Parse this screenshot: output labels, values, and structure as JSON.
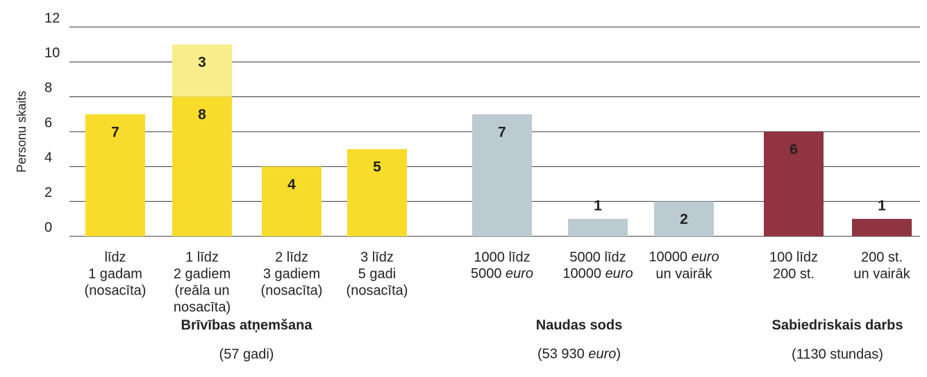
{
  "chart_data": {
    "type": "bar",
    "ylabel": "Personu skaits",
    "ylim": [
      0,
      12
    ],
    "yticks": [
      0,
      2,
      4,
      6,
      8,
      10,
      12
    ],
    "grid": true,
    "groups": [
      {
        "label": "Brīvības atņemšana",
        "sublabel": "(57 gadi)",
        "categories": [
          [
            "līdz",
            "1 gadam",
            "(nosacīta)"
          ],
          [
            "1 līdz",
            "2 gadiem",
            "(reāla un",
            "nosacīta)"
          ],
          [
            "2 līdz",
            "3 gadiem",
            "(nosacīta)"
          ],
          [
            "3 līdz",
            "5 gadi",
            "(nosacīta)"
          ]
        ],
        "series": [
          {
            "color": "#f8dc2c",
            "values": [
              7,
              8,
              4,
              5
            ]
          },
          {
            "color": "#f9ec8a",
            "values": [
              null,
              3,
              null,
              null
            ]
          }
        ]
      },
      {
        "label": "Naudas sods",
        "sublabel": "(53 930 euro)",
        "categories": [
          [
            "1000 līdz",
            "5000 euro"
          ],
          [
            "5000 līdz",
            "10000 euro"
          ],
          [
            "10000 euro",
            "un vairāk"
          ]
        ],
        "series": [
          {
            "color": "#bccbd1",
            "values": [
              7,
              1,
              2
            ]
          }
        ]
      },
      {
        "label": "Sabiedriskais darbs",
        "sublabel": "(1130 stundas)",
        "categories": [
          [
            "100 līdz",
            "200 st."
          ],
          [
            "200 st.",
            "un vairāk"
          ]
        ],
        "series": [
          {
            "color": "#8f3440",
            "values": [
              6,
              1
            ]
          }
        ]
      }
    ]
  }
}
